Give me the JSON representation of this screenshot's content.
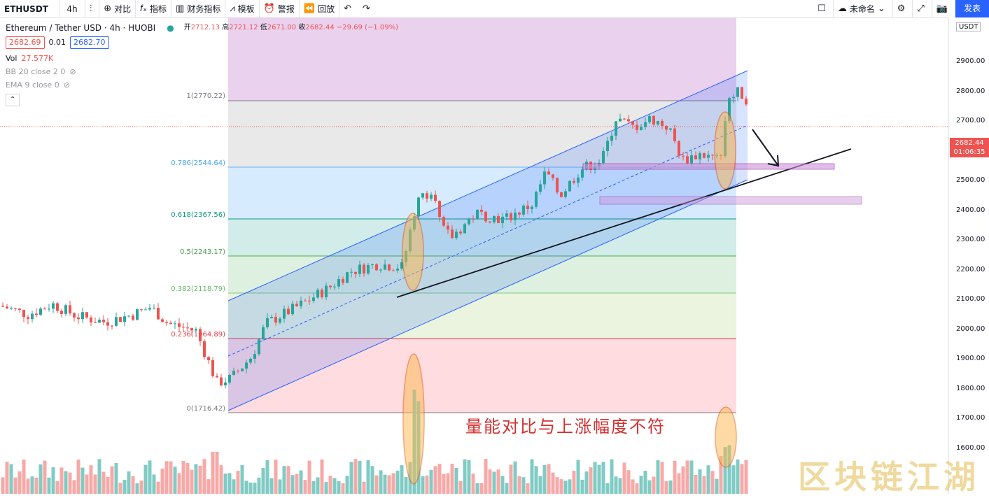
{
  "toolbar": {
    "symbol": "ETHUSDT",
    "interval": "4h",
    "compare": "对比",
    "indicators": "指标",
    "financials": "财务指标",
    "templates": "模板",
    "alert": "警报",
    "replay": "回放",
    "layout_name": "未命名",
    "publish": "发表"
  },
  "legend": {
    "title": "Ethereum / Tether USD · 4h · HUOBI",
    "open_label": "开",
    "open": "2712.13",
    "high_label": "高",
    "high": "2721.12",
    "low_label": "低",
    "low": "2671.00",
    "close_label": "收",
    "close": "2682.44",
    "change": "−29.69 (−1.09%)",
    "bid": "2682.69",
    "spread": "0.01",
    "ask": "2682.70",
    "vol_label": "Vol",
    "vol": "27.577K",
    "bb": "BB 20 close 2 0",
    "ema": "EMA 9 close 0"
  },
  "axis": {
    "currency": "USDT",
    "labels": [
      "2900.00",
      "2800.00",
      "2700.00",
      "2600.00",
      "2500.00",
      "2400.00",
      "2300.00",
      "2200.00",
      "2100.00",
      "2000.00",
      "1900.00",
      "1800.00",
      "1700.00",
      "1600.00"
    ],
    "current_price": "2682.44",
    "countdown": "01:06:35"
  },
  "fib_levels": [
    {
      "label": "1(2770.22)",
      "color": "#787b86"
    },
    {
      "label": "0.786(2544.64)",
      "color": "#64b5f6"
    },
    {
      "label": "0.618(2367.56)",
      "color": "#089981"
    },
    {
      "label": "0.5(2243.17)",
      "color": "#4caf50"
    },
    {
      "label": "0.382(2118.79)",
      "color": "#81c784"
    },
    {
      "label": "0.236(1964.89)",
      "color": "#f23645"
    },
    {
      "label": "0(1716.42)",
      "color": "#787b86"
    }
  ],
  "annotation": "量能对比与上涨幅度不符",
  "watermark": "区块链江湖",
  "colors": {
    "up": "#26a69a",
    "down": "#ef5350",
    "accent": "#2962ff"
  }
}
